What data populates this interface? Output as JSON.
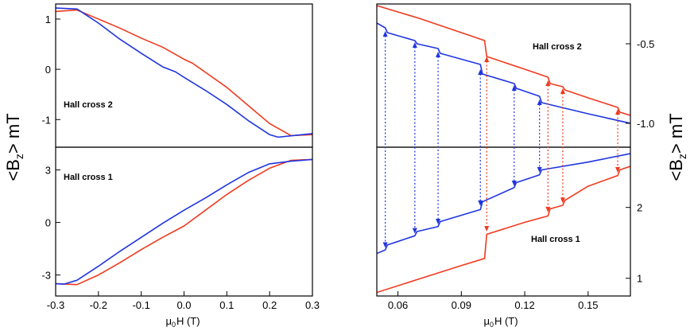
{
  "figure": {
    "y_axis_label": {
      "main": "<B",
      "sub": "z",
      "rest": "> mT"
    },
    "x_axis_label": {
      "main": "μ",
      "sub": "0",
      "rest": "H (T)"
    }
  },
  "chart_data": [
    {
      "id": "left-top",
      "type": "line",
      "annotation": "Hall cross 2",
      "xlim": [
        -0.3,
        0.3
      ],
      "ylim": [
        -1.55,
        1.3
      ],
      "yticks": [
        -1,
        0,
        1
      ],
      "ytick_labels": [
        "-1",
        "0",
        "1"
      ],
      "series": [
        {
          "name": "red",
          "color": "#f03a1e",
          "points": [
            [
              -0.3,
              1.15
            ],
            [
              -0.25,
              1.18
            ],
            [
              -0.2,
              1.0
            ],
            [
              -0.15,
              0.82
            ],
            [
              -0.1,
              0.62
            ],
            [
              -0.05,
              0.44
            ],
            [
              0.0,
              0.2
            ],
            [
              0.02,
              0.12
            ],
            [
              0.05,
              -0.06
            ],
            [
              0.1,
              -0.36
            ],
            [
              0.15,
              -0.72
            ],
            [
              0.2,
              -1.08
            ],
            [
              0.25,
              -1.32
            ],
            [
              0.3,
              -1.3
            ]
          ]
        },
        {
          "name": "blue",
          "color": "#1f35e0",
          "points": [
            [
              0.3,
              -1.28
            ],
            [
              0.22,
              -1.35
            ],
            [
              0.2,
              -1.3
            ],
            [
              0.15,
              -1.02
            ],
            [
              0.1,
              -0.7
            ],
            [
              0.05,
              -0.42
            ],
            [
              0.0,
              -0.16
            ],
            [
              -0.02,
              -0.05
            ],
            [
              -0.05,
              0.05
            ],
            [
              -0.1,
              0.32
            ],
            [
              -0.15,
              0.6
            ],
            [
              -0.2,
              0.92
            ],
            [
              -0.25,
              1.2
            ],
            [
              -0.3,
              1.22
            ]
          ]
        }
      ]
    },
    {
      "id": "left-bottom",
      "type": "line",
      "annotation": "Hall cross 1",
      "xlim": [
        -0.3,
        0.3
      ],
      "ylim": [
        -4.2,
        4.3
      ],
      "yticks": [
        -3,
        0,
        3
      ],
      "ytick_labels": [
        "-3",
        "0",
        "3"
      ],
      "xticks": [
        -0.3,
        -0.2,
        -0.1,
        0.0,
        0.1,
        0.2,
        0.3
      ],
      "xtick_labels": [
        "-0.3",
        "-0.2",
        "-0.1",
        "0.0",
        "0.1",
        "0.2",
        "0.3"
      ],
      "series": [
        {
          "name": "red",
          "color": "#f03a1e",
          "points": [
            [
              -0.3,
              -3.5
            ],
            [
              -0.25,
              -3.55
            ],
            [
              -0.2,
              -3.0
            ],
            [
              -0.15,
              -2.3
            ],
            [
              -0.1,
              -1.55
            ],
            [
              -0.05,
              -0.85
            ],
            [
              0.0,
              -0.2
            ],
            [
              0.05,
              0.7
            ],
            [
              0.1,
              1.6
            ],
            [
              0.15,
              2.4
            ],
            [
              0.2,
              3.1
            ],
            [
              0.25,
              3.55
            ],
            [
              0.3,
              3.6
            ]
          ]
        },
        {
          "name": "blue",
          "color": "#1f35e0",
          "points": [
            [
              0.3,
              3.6
            ],
            [
              0.25,
              3.5
            ],
            [
              0.2,
              3.35
            ],
            [
              0.15,
              2.85
            ],
            [
              0.1,
              2.15
            ],
            [
              0.05,
              1.4
            ],
            [
              0.0,
              0.7
            ],
            [
              -0.05,
              -0.05
            ],
            [
              -0.1,
              -0.85
            ],
            [
              -0.15,
              -1.65
            ],
            [
              -0.2,
              -2.5
            ],
            [
              -0.25,
              -3.3
            ],
            [
              -0.28,
              -3.52
            ],
            [
              -0.3,
              -3.5
            ]
          ]
        }
      ]
    },
    {
      "id": "right-top",
      "type": "line",
      "annotation": "Hall cross 2",
      "xlim": [
        0.05,
        0.17
      ],
      "ylim": [
        -1.15,
        -0.25
      ],
      "yticks": [
        -0.5,
        -1.0
      ],
      "ytick_labels": [
        "-0.5",
        "-1.0"
      ],
      "series": [
        {
          "name": "red",
          "color": "#f03a1e",
          "points": [
            [
              0.05,
              -0.26
            ],
            [
              0.07,
              -0.34
            ],
            [
              0.09,
              -0.43
            ],
            [
              0.101,
              -0.48
            ],
            [
              0.102,
              -0.58
            ],
            [
              0.12,
              -0.66
            ],
            [
              0.131,
              -0.71
            ],
            [
              0.132,
              -0.75
            ],
            [
              0.138,
              -0.77
            ],
            [
              0.139,
              -0.79
            ],
            [
              0.15,
              -0.84
            ],
            [
              0.164,
              -0.9
            ],
            [
              0.165,
              -0.93
            ],
            [
              0.17,
              -0.95
            ]
          ]
        },
        {
          "name": "blue",
          "color": "#1f35e0",
          "points": [
            [
              0.05,
              -0.37
            ],
            [
              0.054,
              -0.4
            ],
            [
              0.055,
              -0.43
            ],
            [
              0.068,
              -0.48
            ],
            [
              0.069,
              -0.5
            ],
            [
              0.079,
              -0.53
            ],
            [
              0.08,
              -0.56
            ],
            [
              0.099,
              -0.63
            ],
            [
              0.1,
              -0.69
            ],
            [
              0.115,
              -0.75
            ],
            [
              0.116,
              -0.78
            ],
            [
              0.127,
              -0.83
            ],
            [
              0.128,
              -0.87
            ],
            [
              0.15,
              -0.94
            ],
            [
              0.17,
              -1.0
            ]
          ]
        }
      ]
    },
    {
      "id": "right-bottom",
      "type": "line",
      "annotation": "Hall cross 1",
      "xlim": [
        0.05,
        0.17
      ],
      "ylim": [
        0.75,
        2.85
      ],
      "yticks": [
        1,
        2
      ],
      "ytick_labels": [
        "1",
        "2"
      ],
      "xticks": [
        0.06,
        0.09,
        0.12,
        0.15
      ],
      "xtick_labels": [
        "0.06",
        "0.09",
        "0.12",
        "0.15"
      ],
      "series": [
        {
          "name": "red",
          "color": "#f03a1e",
          "points": [
            [
              0.05,
              0.8
            ],
            [
              0.07,
              0.99
            ],
            [
              0.09,
              1.18
            ],
            [
              0.101,
              1.28
            ],
            [
              0.102,
              1.62
            ],
            [
              0.12,
              1.79
            ],
            [
              0.131,
              1.88
            ],
            [
              0.132,
              1.98
            ],
            [
              0.138,
              2.03
            ],
            [
              0.139,
              2.1
            ],
            [
              0.15,
              2.3
            ],
            [
              0.164,
              2.45
            ],
            [
              0.165,
              2.53
            ],
            [
              0.17,
              2.58
            ]
          ]
        },
        {
          "name": "blue",
          "color": "#1f35e0",
          "points": [
            [
              0.05,
              1.35
            ],
            [
              0.054,
              1.4
            ],
            [
              0.055,
              1.47
            ],
            [
              0.068,
              1.6
            ],
            [
              0.069,
              1.66
            ],
            [
              0.079,
              1.73
            ],
            [
              0.08,
              1.8
            ],
            [
              0.099,
              1.97
            ],
            [
              0.1,
              2.08
            ],
            [
              0.115,
              2.28
            ],
            [
              0.116,
              2.35
            ],
            [
              0.127,
              2.46
            ],
            [
              0.128,
              2.53
            ],
            [
              0.15,
              2.64
            ],
            [
              0.17,
              2.76
            ]
          ]
        }
      ]
    }
  ],
  "right_arrows": [
    {
      "color": "#1f35e0",
      "x": 0.054,
      "y_top": -0.42,
      "y_bottom": 1.43
    },
    {
      "color": "#1f35e0",
      "x": 0.068,
      "y_top": -0.49,
      "y_bottom": 1.63
    },
    {
      "color": "#1f35e0",
      "x": 0.079,
      "y_top": -0.55,
      "y_bottom": 1.76
    },
    {
      "color": "#1f35e0",
      "x": 0.099,
      "y_top": -0.66,
      "y_bottom": 2.02
    },
    {
      "color": "#1f35e0",
      "x": 0.115,
      "y_top": -0.76,
      "y_bottom": 2.3
    },
    {
      "color": "#1f35e0",
      "x": 0.127,
      "y_top": -0.85,
      "y_bottom": 2.49
    },
    {
      "color": "#f03a1e",
      "x": 0.102,
      "y_top": -0.58,
      "y_bottom": 1.66
    },
    {
      "color": "#f03a1e",
      "x": 0.131,
      "y_top": -0.73,
      "y_bottom": 1.93
    },
    {
      "color": "#f03a1e",
      "x": 0.138,
      "y_top": -0.78,
      "y_bottom": 2.06
    },
    {
      "color": "#f03a1e",
      "x": 0.164,
      "y_top": -0.91,
      "y_bottom": 2.49
    }
  ]
}
